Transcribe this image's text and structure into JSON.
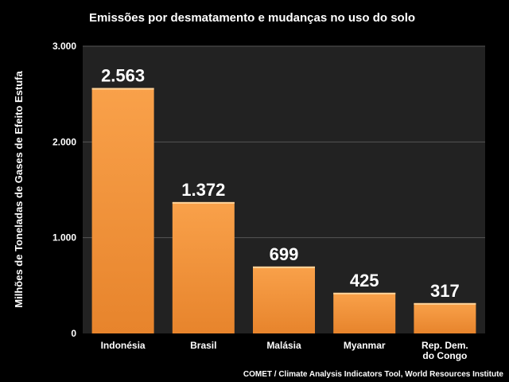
{
  "chart_data": {
    "type": "bar",
    "title": "Emissões por desmatamento e mudanças no uso do solo",
    "ylabel": "Milhões de Toneladas de Gases de Efeito Estufa",
    "xlabel": "",
    "categories": [
      [
        "Indonésia"
      ],
      [
        "Brasil"
      ],
      [
        "Malásia"
      ],
      [
        "Myanmar"
      ],
      [
        "Rep. Dem.",
        "do Congo"
      ]
    ],
    "values": [
      2563,
      1372,
      699,
      425,
      317
    ],
    "value_labels": [
      "2.563",
      "1.372",
      "699",
      "425",
      "317"
    ],
    "ylim": [
      0,
      3000
    ],
    "yticks": [
      0,
      1000,
      2000,
      3000
    ],
    "ytick_labels": [
      "0",
      "1.000",
      "2.000",
      "3.000"
    ],
    "grid": true,
    "source": "COMET / Climate Analysis Indicators Tool, World Resources Institute",
    "colors": {
      "background": "#000000",
      "plot_background": "#222222",
      "gridline": "#555555",
      "bar_top": "#f9a14a",
      "bar_bottom": "#e7842c",
      "bar_cap": "#ffd39a"
    }
  }
}
